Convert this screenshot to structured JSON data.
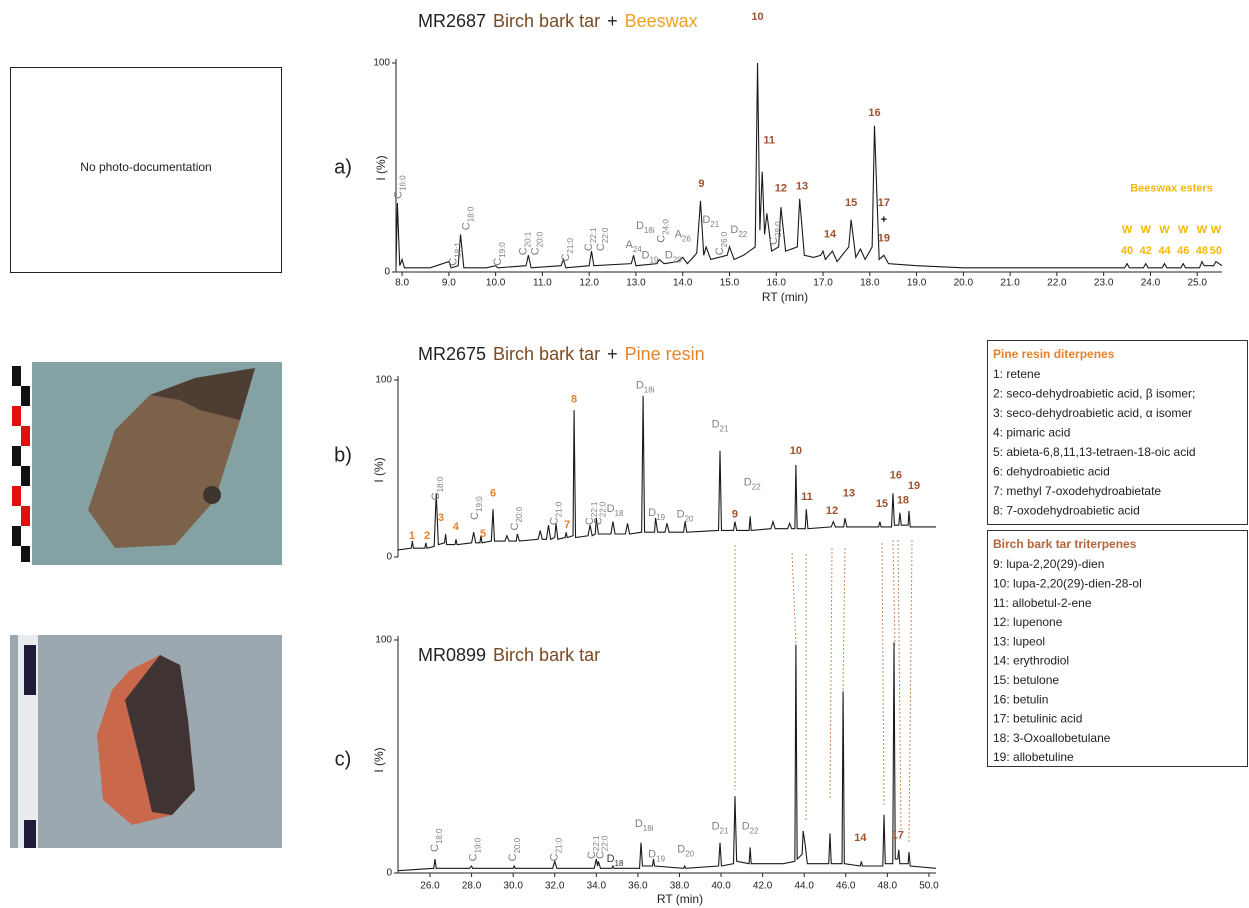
{
  "panel_labels": [
    "a)",
    "b)",
    "c)"
  ],
  "photo_note": "No photo-documentation",
  "legend_boxes": [
    {
      "title": "Pine resin diterpenes",
      "color": "#e8822a",
      "items": [
        "1: retene",
        "2: seco-dehydroabietic acid, β isomer;",
        "3: seco-dehydroabietic acid, α isomer",
        "4: pimaric acid",
        "5: abieta-6,8,11,13-tetraen-18-oic acid",
        "6: dehydroabietic acid",
        "7: methyl 7-oxodehydroabietate",
        "8: 7-oxodehydroabietic acid"
      ]
    },
    {
      "title": "Birch bark tar triterpenes",
      "color": "#b5653a",
      "items": [
        "9: lupa-2,20(29)-dien",
        "10: lupa-2,20(29)-dien-28-ol",
        "11: allobetul-2-ene",
        "12:  lupenone",
        "13: lupeol",
        "14: erythrodiol",
        "15: betulone",
        "16: betulin",
        "17: betulinic  acid",
        "18: 3-Oxoallobetulane",
        "19: allobetuline"
      ]
    }
  ],
  "chart_data": [
    {
      "type": "line",
      "color": "#1a1a1a",
      "title_parts": [
        {
          "text": "MR2687",
          "color": "#222222"
        },
        {
          "text": "Birch bark tar",
          "color": "#7a4a22"
        },
        {
          "text": "+",
          "color": "#222222"
        },
        {
          "text": "Beeswax",
          "color": "#f0a020"
        }
      ],
      "xlabel": "RT (min)",
      "ylabel": "I (%)",
      "xlim": [
        7.87,
        25.53
      ],
      "ylim": [
        0,
        100
      ],
      "yticks": [
        0,
        100
      ],
      "xticks": [
        {
          "value": 8,
          "label": "8.0"
        },
        {
          "value": 9,
          "label": "9.0"
        },
        {
          "value": 10,
          "label": "10.0"
        },
        {
          "value": 11,
          "label": "11.0"
        },
        {
          "value": 12,
          "label": "12.0"
        },
        {
          "value": 13,
          "label": "13.0"
        },
        {
          "value": 14,
          "label": "14.0"
        },
        {
          "value": 15,
          "label": "15.0"
        },
        {
          "value": 16,
          "label": "16.0"
        },
        {
          "value": 17,
          "label": "17.0"
        },
        {
          "value": 18,
          "label": "18.0"
        },
        {
          "value": 19,
          "label": "19.0"
        },
        {
          "value": 20,
          "label": "20.0"
        },
        {
          "value": 21,
          "label": "21.0"
        },
        {
          "value": 22,
          "label": "22.0"
        },
        {
          "value": 23,
          "label": "23.0"
        },
        {
          "value": 24,
          "label": "24.0"
        },
        {
          "value": 25,
          "label": "25.0"
        }
      ],
      "x": [
        7.87,
        7.9,
        7.95,
        8.0,
        8.05,
        8.6,
        9.0,
        9.05,
        9.2,
        9.25,
        9.32,
        9.8,
        10.0,
        10.05,
        10.65,
        10.7,
        10.76,
        11.4,
        11.45,
        11.5,
        12.0,
        12.05,
        12.1,
        12.9,
        12.95,
        13.0,
        13.45,
        13.5,
        13.6,
        13.9,
        14.0,
        14.1,
        14.3,
        14.38,
        14.45,
        14.5,
        14.6,
        14.95,
        15.0,
        15.1,
        15.3,
        15.55,
        15.6,
        15.65,
        15.7,
        15.75,
        15.8,
        15.9,
        16.05,
        16.1,
        16.2,
        16.45,
        16.5,
        16.6,
        16.8,
        16.95,
        17.0,
        17.05,
        17.2,
        17.3,
        17.55,
        17.6,
        17.7,
        17.8,
        17.9,
        18.05,
        18.1,
        18.2,
        18.3,
        18.4,
        19.0,
        20.0,
        21.0,
        22.0,
        23.45,
        23.5,
        23.55,
        23.85,
        23.9,
        23.95,
        24.25,
        24.3,
        24.35,
        24.65,
        24.7,
        24.75,
        25.05,
        25.1,
        25.15,
        25.35,
        25.4,
        25.53
      ],
      "values": [
        2,
        33,
        3,
        6,
        2,
        2,
        5,
        2,
        3,
        18,
        2,
        2,
        3,
        2,
        3,
        8,
        2,
        3,
        6,
        2,
        3,
        10,
        3,
        4,
        8,
        3,
        4,
        6,
        4,
        5,
        7,
        4,
        9,
        34,
        8,
        12,
        6,
        8,
        12,
        6,
        8,
        12,
        100,
        20,
        48,
        18,
        28,
        10,
        12,
        31,
        10,
        12,
        35,
        8,
        7,
        8,
        10,
        6,
        10,
        5,
        12,
        25,
        7,
        11,
        6,
        12,
        70,
        6,
        8,
        4,
        3,
        2,
        2,
        2,
        2,
        4,
        2,
        2,
        4,
        2,
        2,
        4,
        2,
        2,
        4,
        2,
        2,
        5,
        3,
        3,
        5,
        3
      ],
      "annotations": [
        {
          "text": "C",
          "sub": "16:0",
          "color": "#808080"
        },
        {
          "text": "C",
          "sub": "18:1",
          "color": "#808080"
        },
        {
          "text": "C",
          "sub": "18:0",
          "color": "#808080"
        },
        {
          "text": "C",
          "sub": "19:0",
          "color": "#808080"
        },
        {
          "text": "C",
          "sub": "20:1",
          "color": "#808080"
        },
        {
          "text": "C",
          "sub": "20:0",
          "color": "#808080"
        },
        {
          "text": "C",
          "sub": "21:0",
          "color": "#808080"
        },
        {
          "text": "C",
          "sub": "22:1",
          "color": "#808080"
        },
        {
          "text": "C",
          "sub": "22:0",
          "color": "#808080"
        },
        {
          "text": "A",
          "sub": "24",
          "color": "#808080"
        },
        {
          "text": "D",
          "sub": "18i",
          "color": "#808080"
        },
        {
          "text": "D",
          "sub": "19",
          "color": "#808080"
        },
        {
          "text": "C",
          "sub": "24:0",
          "color": "#808080"
        },
        {
          "text": "D",
          "sub": "20",
          "color": "#808080"
        },
        {
          "text": "A",
          "sub": "26",
          "color": "#808080"
        },
        {
          "text": "D",
          "sub": "21",
          "color": "#808080"
        },
        {
          "text": "C",
          "sub": "26:0",
          "color": "#808080"
        },
        {
          "text": "D",
          "sub": "22",
          "color": "#808080"
        },
        {
          "text": "C",
          "sub": "28:0",
          "color": "#808080"
        },
        {
          "text": "10",
          "color": "#a0522d"
        },
        {
          "text": "11",
          "color": "#a0522d"
        },
        {
          "text": "9",
          "color": "#a0522d"
        },
        {
          "text": "12",
          "color": "#a0522d"
        },
        {
          "text": "13",
          "color": "#a0522d"
        },
        {
          "text": "14",
          "color": "#a0522d"
        },
        {
          "text": "15",
          "color": "#a0522d"
        },
        {
          "text": "16",
          "color": "#a0522d"
        },
        {
          "text": "17",
          "color": "#a0522d"
        },
        {
          "text": "+",
          "color": "#111111"
        },
        {
          "text": "19",
          "color": "#a0522d"
        },
        {
          "text": "Beeswax esters",
          "color": "#f5b800"
        },
        {
          "text": "W",
          "color": "#f5b800"
        },
        {
          "text": "W",
          "color": "#f5b800"
        },
        {
          "text": "W",
          "color": "#f5b800"
        },
        {
          "text": "W",
          "color": "#f5b800"
        },
        {
          "text": "W",
          "color": "#f5b800"
        },
        {
          "text": "W",
          "color": "#f5b800"
        },
        {
          "text": "40",
          "color": "#f5b800"
        },
        {
          "text": "42",
          "color": "#f5b800"
        },
        {
          "text": "44",
          "color": "#f5b800"
        },
        {
          "text": "46",
          "color": "#f5b800"
        },
        {
          "text": "48",
          "color": "#f5b800"
        },
        {
          "text": "50",
          "color": "#f5b800"
        }
      ]
    },
    {
      "type": "line",
      "color": "#1a1a1a",
      "title_parts": [
        {
          "text": "MR2675",
          "color": "#222222"
        },
        {
          "text": "Birch bark tar",
          "color": "#7a4a22"
        },
        {
          "text": "+",
          "color": "#222222"
        },
        {
          "text": "Pine resin",
          "color": "#e8822a"
        }
      ],
      "ylabel": "I (%)",
      "xlim": [
        24.46,
        50.34
      ],
      "ylim": [
        0,
        100
      ],
      "yticks": [
        0,
        100
      ],
      "x": [
        24.46,
        25.1,
        25.15,
        25.2,
        25.75,
        25.8,
        25.85,
        26.2,
        26.3,
        26.4,
        26.7,
        26.75,
        26.8,
        27.2,
        27.25,
        27.3,
        28.0,
        28.1,
        28.2,
        28.4,
        28.45,
        28.5,
        28.95,
        29.03,
        29.1,
        29.6,
        29.7,
        29.8,
        30.15,
        30.2,
        30.3,
        31.2,
        31.3,
        31.4,
        31.6,
        31.7,
        31.8,
        32.0,
        32.06,
        32.15,
        32.5,
        32.55,
        32.6,
        32.88,
        32.93,
        33.0,
        33.6,
        33.7,
        33.8,
        33.95,
        34.0,
        34.1,
        34.7,
        34.8,
        34.9,
        35.4,
        35.5,
        35.6,
        36.18,
        36.25,
        36.32,
        36.8,
        36.85,
        36.95,
        37.3,
        37.4,
        37.5,
        38.2,
        38.27,
        38.35,
        39.88,
        39.95,
        40.02,
        40.6,
        40.67,
        40.75,
        41.35,
        41.4,
        41.45,
        42.4,
        42.5,
        42.6,
        43.2,
        43.3,
        43.4,
        43.55,
        43.6,
        43.66,
        44.05,
        44.1,
        44.18,
        45.3,
        45.4,
        45.5,
        45.9,
        45.96,
        46.05,
        47.58,
        47.64,
        47.7,
        48.2,
        48.27,
        48.34,
        48.55,
        48.6,
        48.67,
        49.0,
        49.04,
        49.1,
        50.34
      ],
      "values": [
        4,
        5,
        9,
        5,
        5,
        8,
        5,
        6,
        36,
        7,
        8,
        13,
        7,
        7,
        10,
        7,
        8,
        14,
        8,
        8,
        12,
        8,
        9,
        27,
        9,
        9,
        12,
        9,
        9,
        13,
        9,
        10,
        15,
        10,
        10,
        18,
        10,
        11,
        19,
        10,
        11,
        14,
        11,
        12,
        83,
        11,
        12,
        18,
        12,
        13,
        22,
        13,
        13,
        20,
        13,
        13,
        19,
        13,
        14,
        91,
        14,
        14,
        22,
        14,
        14,
        19,
        14,
        14,
        20,
        14,
        15,
        60,
        15,
        15,
        20,
        15,
        15,
        23,
        15,
        16,
        20,
        16,
        16,
        19,
        16,
        16,
        52,
        16,
        16,
        27,
        16,
        17,
        20,
        17,
        17,
        22,
        17,
        17,
        20,
        17,
        17,
        36,
        18,
        18,
        25,
        18,
        18,
        26,
        17,
        17
      ],
      "annotations": [
        {
          "text": "1",
          "color": "#e8822a"
        },
        {
          "text": "2",
          "color": "#e8822a"
        },
        {
          "text": "3",
          "color": "#e8822a"
        },
        {
          "text": "4",
          "color": "#e8822a"
        },
        {
          "text": "5",
          "color": "#e8822a"
        },
        {
          "text": "6",
          "color": "#e8822a"
        },
        {
          "text": "7",
          "color": "#e8822a"
        },
        {
          "text": "8",
          "color": "#e8822a"
        },
        {
          "text": "C",
          "sub": "18:0",
          "color": "#808080"
        },
        {
          "text": "C",
          "sub": "19:0",
          "color": "#808080"
        },
        {
          "text": "C",
          "sub": "20:0",
          "color": "#808080"
        },
        {
          "text": "C",
          "sub": "21:0",
          "color": "#808080"
        },
        {
          "text": "C",
          "sub": "22:1",
          "color": "#808080"
        },
        {
          "text": "C",
          "sub": "22:0",
          "color": "#808080"
        },
        {
          "text": "D",
          "sub": "18",
          "color": "#808080"
        },
        {
          "text": "D",
          "sub": "18i",
          "color": "#808080"
        },
        {
          "text": "D",
          "sub": "19",
          "color": "#808080"
        },
        {
          "text": "D",
          "sub": "20",
          "color": "#808080"
        },
        {
          "text": "D",
          "sub": "21",
          "color": "#808080"
        },
        {
          "text": "D",
          "sub": "22",
          "color": "#808080"
        },
        {
          "text": "9",
          "color": "#a0522d"
        },
        {
          "text": "10",
          "color": "#a0522d"
        },
        {
          "text": "11",
          "color": "#a0522d"
        },
        {
          "text": "12",
          "color": "#a0522d"
        },
        {
          "text": "13",
          "color": "#a0522d"
        },
        {
          "text": "15",
          "color": "#a0522d"
        },
        {
          "text": "16",
          "color": "#a0522d"
        },
        {
          "text": "18",
          "color": "#a0522d"
        },
        {
          "text": "19",
          "color": "#a0522d"
        }
      ]
    },
    {
      "type": "line",
      "color": "#1a1a1a",
      "title_parts": [
        {
          "text": "MR0899",
          "color": "#222222"
        },
        {
          "text": "Birch bark tar",
          "color": "#7a4a22"
        }
      ],
      "xlabel": "RT (min)",
      "ylabel": "I (%)",
      "xlim": [
        24.46,
        50.34
      ],
      "ylim": [
        0,
        100
      ],
      "yticks": [
        0,
        100
      ],
      "xticks": [
        {
          "value": 26,
          "label": "26.0"
        },
        {
          "value": 28,
          "label": "28.0"
        },
        {
          "value": 30,
          "label": "30.0"
        },
        {
          "value": 32,
          "label": "32.0"
        },
        {
          "value": 34,
          "label": "34.0"
        },
        {
          "value": 36,
          "label": "36.0"
        },
        {
          "value": 38,
          "label": "38.0"
        },
        {
          "value": 40,
          "label": "40.0"
        },
        {
          "value": 42,
          "label": "42.0"
        },
        {
          "value": 44,
          "label": "44.0"
        },
        {
          "value": 46,
          "label": "46.0"
        },
        {
          "value": 48,
          "label": "48.0"
        },
        {
          "value": 50,
          "label": "50.0"
        }
      ],
      "x": [
        24.46,
        26.18,
        26.24,
        26.3,
        27.9,
        28.0,
        28.05,
        30.0,
        30.05,
        30.1,
        31.9,
        32.0,
        32.1,
        33.9,
        34.0,
        34.06,
        34.1,
        34.2,
        34.75,
        34.8,
        34.85,
        36.08,
        36.15,
        36.22,
        36.7,
        36.75,
        36.8,
        38.2,
        38.25,
        38.3,
        39.88,
        39.95,
        40.02,
        40.6,
        40.67,
        40.75,
        41.35,
        41.4,
        41.45,
        43.0,
        43.55,
        43.6,
        43.66,
        43.9,
        43.95,
        44.05,
        44.15,
        45.18,
        45.24,
        45.3,
        45.82,
        45.87,
        45.93,
        46.7,
        46.75,
        46.8,
        47.78,
        47.84,
        47.9,
        48.26,
        48.32,
        48.38,
        48.5,
        48.55,
        48.6,
        49.0,
        49.04,
        49.1,
        50.34
      ],
      "values": [
        1,
        2,
        6,
        2,
        2,
        3,
        2,
        2,
        3,
        2,
        2,
        5,
        2,
        2,
        6,
        3,
        5,
        2,
        2,
        3,
        2,
        2,
        13,
        3,
        3,
        6,
        3,
        2,
        3,
        2,
        3,
        13,
        3,
        4,
        33,
        5,
        4,
        11,
        4,
        4,
        5,
        98,
        6,
        8,
        18,
        12,
        4,
        4,
        17,
        4,
        4,
        78,
        4,
        3,
        5,
        3,
        3,
        25,
        4,
        4,
        99,
        6,
        6,
        10,
        4,
        4,
        9,
        3,
        2
      ],
      "annotations": [
        {
          "text": "C",
          "sub": "18:0",
          "color": "#808080"
        },
        {
          "text": "C",
          "sub": "19:0",
          "color": "#808080"
        },
        {
          "text": "C",
          "sub": "20:0",
          "color": "#808080"
        },
        {
          "text": "C",
          "sub": "21:0",
          "color": "#808080"
        },
        {
          "text": "C",
          "sub": "22:1",
          "color": "#808080"
        },
        {
          "text": "C",
          "sub": "22:0",
          "color": "#808080"
        },
        {
          "text": "D",
          "sub": "18",
          "color": "#333333"
        },
        {
          "text": "D",
          "sub": "18i",
          "color": "#808080"
        },
        {
          "text": "D",
          "sub": "19",
          "color": "#808080"
        },
        {
          "text": "D",
          "sub": "20",
          "color": "#808080"
        },
        {
          "text": "D",
          "sub": "21",
          "color": "#808080"
        },
        {
          "text": "D",
          "sub": "22",
          "color": "#808080"
        },
        {
          "text": "14",
          "color": "#a0522d"
        },
        {
          "text": "17",
          "color": "#a0522d"
        }
      ]
    }
  ]
}
